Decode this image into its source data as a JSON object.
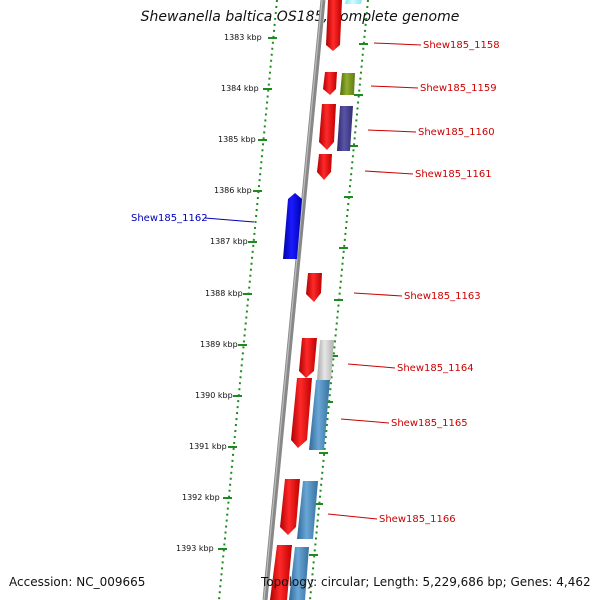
{
  "title": "Shewanella baltica OS185, complete genome",
  "footer": {
    "accession": "Accession: NC_009665",
    "topology": "Topology: circular; Length: 5,229,686 bp; Genes: 4,462"
  },
  "colors": {
    "tick": "#1f8a1f",
    "backbone": "#8a8a8a",
    "red_gene": "#e80000",
    "blue_gene": "#0000e0",
    "steel_gene": "#4a86b8",
    "label_red": "#cc0000",
    "label_blue": "#0000bb"
  },
  "scale_labels": [
    "1383 kbp",
    "1384 kbp",
    "1385 kbp",
    "1386 kbp",
    "1387 kbp",
    "1388 kbp",
    "1389 kbp",
    "1390 kbp",
    "1391 kbp",
    "1392 kbp",
    "1393 kbp"
  ],
  "gene_labels": [
    {
      "name": "Shew185_1158",
      "strand": "forward"
    },
    {
      "name": "Shew185_1159",
      "strand": "forward"
    },
    {
      "name": "Shew185_1160",
      "strand": "forward"
    },
    {
      "name": "Shew185_1161",
      "strand": "forward"
    },
    {
      "name": "Shew185_1162",
      "strand": "reverse"
    },
    {
      "name": "Shew185_1163",
      "strand": "forward"
    },
    {
      "name": "Shew185_1164",
      "strand": "forward"
    },
    {
      "name": "Shew185_1165",
      "strand": "forward"
    },
    {
      "name": "Shew185_1166",
      "strand": "forward"
    }
  ]
}
